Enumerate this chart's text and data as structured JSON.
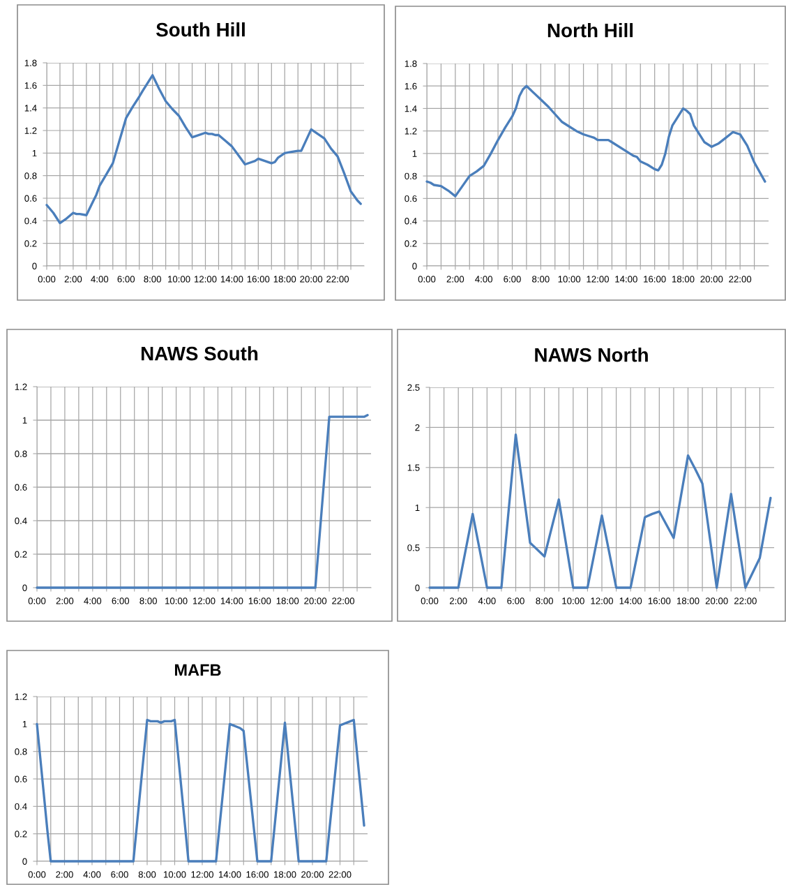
{
  "chart_data": [
    {
      "type": "line",
      "title": "South Hill",
      "grid": true,
      "marker": "none",
      "line_style": "solid",
      "xlim": [
        0,
        24
      ],
      "ylim": [
        0,
        1.8
      ],
      "yticks": [
        0,
        0.2,
        0.4,
        0.6,
        0.8,
        1,
        1.2,
        1.4,
        1.6,
        1.8
      ],
      "xticks": [
        {
          "value": 0,
          "label": "0:00"
        },
        {
          "value": 1,
          "label": null
        },
        {
          "value": 2,
          "label": "2:00"
        },
        {
          "value": 3,
          "label": null
        },
        {
          "value": 4,
          "label": "4:00"
        },
        {
          "value": 5,
          "label": null
        },
        {
          "value": 6,
          "label": "6:00"
        },
        {
          "value": 7,
          "label": null
        },
        {
          "value": 8,
          "label": "8:00"
        },
        {
          "value": 9,
          "label": null
        },
        {
          "value": 10,
          "label": "10:00"
        },
        {
          "value": 11,
          "label": null
        },
        {
          "value": 12,
          "label": "12:00"
        },
        {
          "value": 13,
          "label": null
        },
        {
          "value": 14,
          "label": "14:00"
        },
        {
          "value": 15,
          "label": null
        },
        {
          "value": 16,
          "label": "16:00"
        },
        {
          "value": 17,
          "label": null
        },
        {
          "value": 18,
          "label": "18:00"
        },
        {
          "value": 19,
          "label": null
        },
        {
          "value": 20,
          "label": "20:00"
        },
        {
          "value": 21,
          "label": null
        },
        {
          "value": 22,
          "label": "22:00"
        },
        {
          "value": 23,
          "label": null
        }
      ],
      "series": [
        {
          "color": "#4a7ebb",
          "x": [
            0,
            0.5,
            1,
            1.5,
            2,
            2.25,
            2.5,
            3,
            3.5,
            3.75,
            4,
            4.5,
            5,
            5.5,
            6,
            6.5,
            7,
            7.25,
            8,
            8.5,
            9,
            9.5,
            10,
            10.5,
            11,
            11.25,
            12,
            12.25,
            12.5,
            12.75,
            13,
            13.5,
            14,
            14.5,
            15,
            15.5,
            15.75,
            16,
            16.5,
            17,
            17.25,
            17.5,
            18,
            18.5,
            19,
            19.25,
            20,
            20.5,
            21,
            21.5,
            22,
            22.5,
            23,
            23.5,
            23.75
          ],
          "values": [
            0.54,
            0.47,
            0.38,
            0.42,
            0.47,
            0.46,
            0.46,
            0.45,
            0.57,
            0.63,
            0.71,
            0.81,
            0.91,
            1.11,
            1.31,
            1.41,
            1.5,
            1.55,
            1.69,
            1.57,
            1.46,
            1.39,
            1.33,
            1.23,
            1.14,
            1.15,
            1.18,
            1.17,
            1.17,
            1.16,
            1.16,
            1.11,
            1.06,
            0.98,
            0.9,
            0.92,
            0.93,
            0.95,
            0.93,
            0.91,
            0.92,
            0.96,
            1.0,
            1.01,
            1.02,
            1.02,
            1.21,
            1.17,
            1.13,
            1.04,
            0.97,
            0.82,
            0.66,
            0.58,
            0.55
          ]
        }
      ]
    },
    {
      "type": "line",
      "title": "North Hill",
      "grid": true,
      "marker": "none",
      "line_style": "solid",
      "xlim": [
        0,
        24
      ],
      "ylim": [
        0,
        1.8
      ],
      "yticks": [
        0,
        0.2,
        0.4,
        0.6,
        0.8,
        1,
        1.2,
        1.4,
        1.6,
        1.8
      ],
      "xticks": [
        {
          "value": 0,
          "label": "0:00"
        },
        {
          "value": 1,
          "label": null
        },
        {
          "value": 2,
          "label": "2:00"
        },
        {
          "value": 3,
          "label": null
        },
        {
          "value": 4,
          "label": "4:00"
        },
        {
          "value": 5,
          "label": null
        },
        {
          "value": 6,
          "label": "6:00"
        },
        {
          "value": 7,
          "label": null
        },
        {
          "value": 8,
          "label": "8:00"
        },
        {
          "value": 9,
          "label": null
        },
        {
          "value": 10,
          "label": "10:00"
        },
        {
          "value": 11,
          "label": null
        },
        {
          "value": 12,
          "label": "12:00"
        },
        {
          "value": 13,
          "label": null
        },
        {
          "value": 14,
          "label": "14:00"
        },
        {
          "value": 15,
          "label": null
        },
        {
          "value": 16,
          "label": "16:00"
        },
        {
          "value": 17,
          "label": null
        },
        {
          "value": 18,
          "label": "18:00"
        },
        {
          "value": 19,
          "label": null
        },
        {
          "value": 20,
          "label": "20:00"
        },
        {
          "value": 21,
          "label": null
        },
        {
          "value": 22,
          "label": "22:00"
        },
        {
          "value": 23,
          "label": null
        }
      ],
      "series": [
        {
          "color": "#4a7ebb",
          "x": [
            0,
            0.25,
            0.5,
            1,
            1.5,
            2,
            2.5,
            3,
            3.5,
            4,
            4.5,
            5,
            5.5,
            6,
            6.25,
            6.5,
            6.75,
            7,
            7.5,
            8,
            8.5,
            9,
            9.5,
            10,
            10.5,
            11,
            11.5,
            11.75,
            12,
            12.75,
            13,
            14,
            14.5,
            14.75,
            15,
            15.5,
            16,
            16.25,
            16.5,
            16.75,
            17,
            17.25,
            17.5,
            18,
            18.25,
            18.5,
            18.75,
            19.5,
            20,
            20.5,
            21,
            21.5,
            22,
            22.5,
            23,
            23.75
          ],
          "values": [
            0.75,
            0.74,
            0.72,
            0.71,
            0.67,
            0.62,
            0.71,
            0.8,
            0.84,
            0.89,
            1.0,
            1.12,
            1.23,
            1.33,
            1.4,
            1.51,
            1.57,
            1.6,
            1.54,
            1.48,
            1.42,
            1.35,
            1.28,
            1.24,
            1.2,
            1.17,
            1.15,
            1.14,
            1.12,
            1.12,
            1.1,
            1.02,
            0.98,
            0.97,
            0.93,
            0.9,
            0.86,
            0.85,
            0.9,
            1.0,
            1.15,
            1.25,
            1.3,
            1.4,
            1.38,
            1.35,
            1.25,
            1.1,
            1.06,
            1.09,
            1.14,
            1.19,
            1.17,
            1.07,
            0.92,
            0.75
          ]
        }
      ]
    },
    {
      "type": "line",
      "title": "NAWS South",
      "grid": true,
      "marker": "none",
      "line_style": "solid",
      "xlim": [
        0,
        24
      ],
      "ylim": [
        0,
        1.2
      ],
      "yticks": [
        0,
        0.2,
        0.4,
        0.6,
        0.8,
        1,
        1.2
      ],
      "xticks": [
        {
          "value": 0,
          "label": "0:00"
        },
        {
          "value": 1,
          "label": null
        },
        {
          "value": 2,
          "label": "2:00"
        },
        {
          "value": 3,
          "label": null
        },
        {
          "value": 4,
          "label": "4:00"
        },
        {
          "value": 5,
          "label": null
        },
        {
          "value": 6,
          "label": "6:00"
        },
        {
          "value": 7,
          "label": null
        },
        {
          "value": 8,
          "label": "8:00"
        },
        {
          "value": 9,
          "label": null
        },
        {
          "value": 10,
          "label": "10:00"
        },
        {
          "value": 11,
          "label": null
        },
        {
          "value": 12,
          "label": "12:00"
        },
        {
          "value": 13,
          "label": null
        },
        {
          "value": 14,
          "label": "14:00"
        },
        {
          "value": 15,
          "label": null
        },
        {
          "value": 16,
          "label": "16:00"
        },
        {
          "value": 17,
          "label": null
        },
        {
          "value": 18,
          "label": "18:00"
        },
        {
          "value": 19,
          "label": null
        },
        {
          "value": 20,
          "label": "20:00"
        },
        {
          "value": 21,
          "label": null
        },
        {
          "value": 22,
          "label": "22:00"
        },
        {
          "value": 23,
          "label": null
        }
      ],
      "series": [
        {
          "color": "#4a7ebb",
          "x": [
            0,
            20,
            21,
            23.5,
            23.75
          ],
          "values": [
            0,
            0,
            1.02,
            1.02,
            1.03
          ]
        }
      ]
    },
    {
      "type": "line",
      "title": "NAWS North",
      "grid": true,
      "marker": "none",
      "line_style": "solid",
      "xlim": [
        0,
        24
      ],
      "ylim": [
        0,
        2.5
      ],
      "yticks": [
        0,
        0.5,
        1,
        1.5,
        2,
        2.5
      ],
      "xticks": [
        {
          "value": 0,
          "label": "0:00"
        },
        {
          "value": 1,
          "label": null
        },
        {
          "value": 2,
          "label": "2:00"
        },
        {
          "value": 3,
          "label": null
        },
        {
          "value": 4,
          "label": "4:00"
        },
        {
          "value": 5,
          "label": null
        },
        {
          "value": 6,
          "label": "6:00"
        },
        {
          "value": 7,
          "label": null
        },
        {
          "value": 8,
          "label": "8:00"
        },
        {
          "value": 9,
          "label": null
        },
        {
          "value": 10,
          "label": "10:00"
        },
        {
          "value": 11,
          "label": null
        },
        {
          "value": 12,
          "label": "12:00"
        },
        {
          "value": 13,
          "label": null
        },
        {
          "value": 14,
          "label": "14:00"
        },
        {
          "value": 15,
          "label": null
        },
        {
          "value": 16,
          "label": "16:00"
        },
        {
          "value": 17,
          "label": null
        },
        {
          "value": 18,
          "label": "18:00"
        },
        {
          "value": 19,
          "label": null
        },
        {
          "value": 20,
          "label": "20:00"
        },
        {
          "value": 21,
          "label": null
        },
        {
          "value": 22,
          "label": "22:00"
        },
        {
          "value": 23,
          "label": null
        }
      ],
      "series": [
        {
          "color": "#4a7ebb",
          "x": [
            0,
            1,
            2,
            3,
            4,
            5,
            6,
            7,
            8,
            9,
            10,
            11,
            12,
            13,
            14,
            15,
            15.5,
            16,
            17,
            18,
            18.5,
            19,
            20,
            21,
            22,
            23,
            23.75
          ],
          "values": [
            0,
            0,
            0,
            0.92,
            0,
            0,
            1.91,
            0.56,
            0.39,
            1.1,
            0,
            0,
            0.9,
            0,
            0,
            0.88,
            0.92,
            0.95,
            0.62,
            1.65,
            1.48,
            1.3,
            0,
            1.17,
            0,
            0.37,
            1.12
          ]
        }
      ]
    },
    {
      "type": "line",
      "title": "MAFB",
      "grid": true,
      "marker": "none",
      "line_style": "solid",
      "xlim": [
        0,
        24
      ],
      "ylim": [
        0,
        1.2
      ],
      "yticks": [
        0,
        0.2,
        0.4,
        0.6,
        0.8,
        1,
        1.2
      ],
      "xticks": [
        {
          "value": 0,
          "label": "0:00"
        },
        {
          "value": 1,
          "label": null
        },
        {
          "value": 2,
          "label": "2:00"
        },
        {
          "value": 3,
          "label": null
        },
        {
          "value": 4,
          "label": "4:00"
        },
        {
          "value": 5,
          "label": null
        },
        {
          "value": 6,
          "label": "6:00"
        },
        {
          "value": 7,
          "label": null
        },
        {
          "value": 8,
          "label": "8:00"
        },
        {
          "value": 9,
          "label": null
        },
        {
          "value": 10,
          "label": "10:00"
        },
        {
          "value": 11,
          "label": null
        },
        {
          "value": 12,
          "label": "12:00"
        },
        {
          "value": 13,
          "label": null
        },
        {
          "value": 14,
          "label": "14:00"
        },
        {
          "value": 15,
          "label": null
        },
        {
          "value": 16,
          "label": "16:00"
        },
        {
          "value": 17,
          "label": null
        },
        {
          "value": 18,
          "label": "18:00"
        },
        {
          "value": 19,
          "label": null
        },
        {
          "value": 20,
          "label": "20:00"
        },
        {
          "value": 21,
          "label": null
        },
        {
          "value": 22,
          "label": "22:00"
        },
        {
          "value": 23,
          "label": null
        }
      ],
      "series": [
        {
          "color": "#4a7ebb",
          "x": [
            0,
            0.75,
            1,
            7,
            8,
            8.25,
            8.75,
            9,
            9.25,
            9.75,
            10,
            11,
            13,
            14,
            14.5,
            14.75,
            15,
            16,
            17,
            18,
            19,
            21,
            22,
            22.5,
            23,
            23.75
          ],
          "values": [
            1.0,
            0.23,
            0,
            0,
            1.03,
            1.02,
            1.02,
            1.01,
            1.02,
            1.02,
            1.03,
            0,
            0,
            1.0,
            0.98,
            0.97,
            0.95,
            0,
            0,
            1.01,
            0,
            0,
            0.99,
            1.01,
            1.03,
            0.26
          ]
        }
      ]
    }
  ]
}
